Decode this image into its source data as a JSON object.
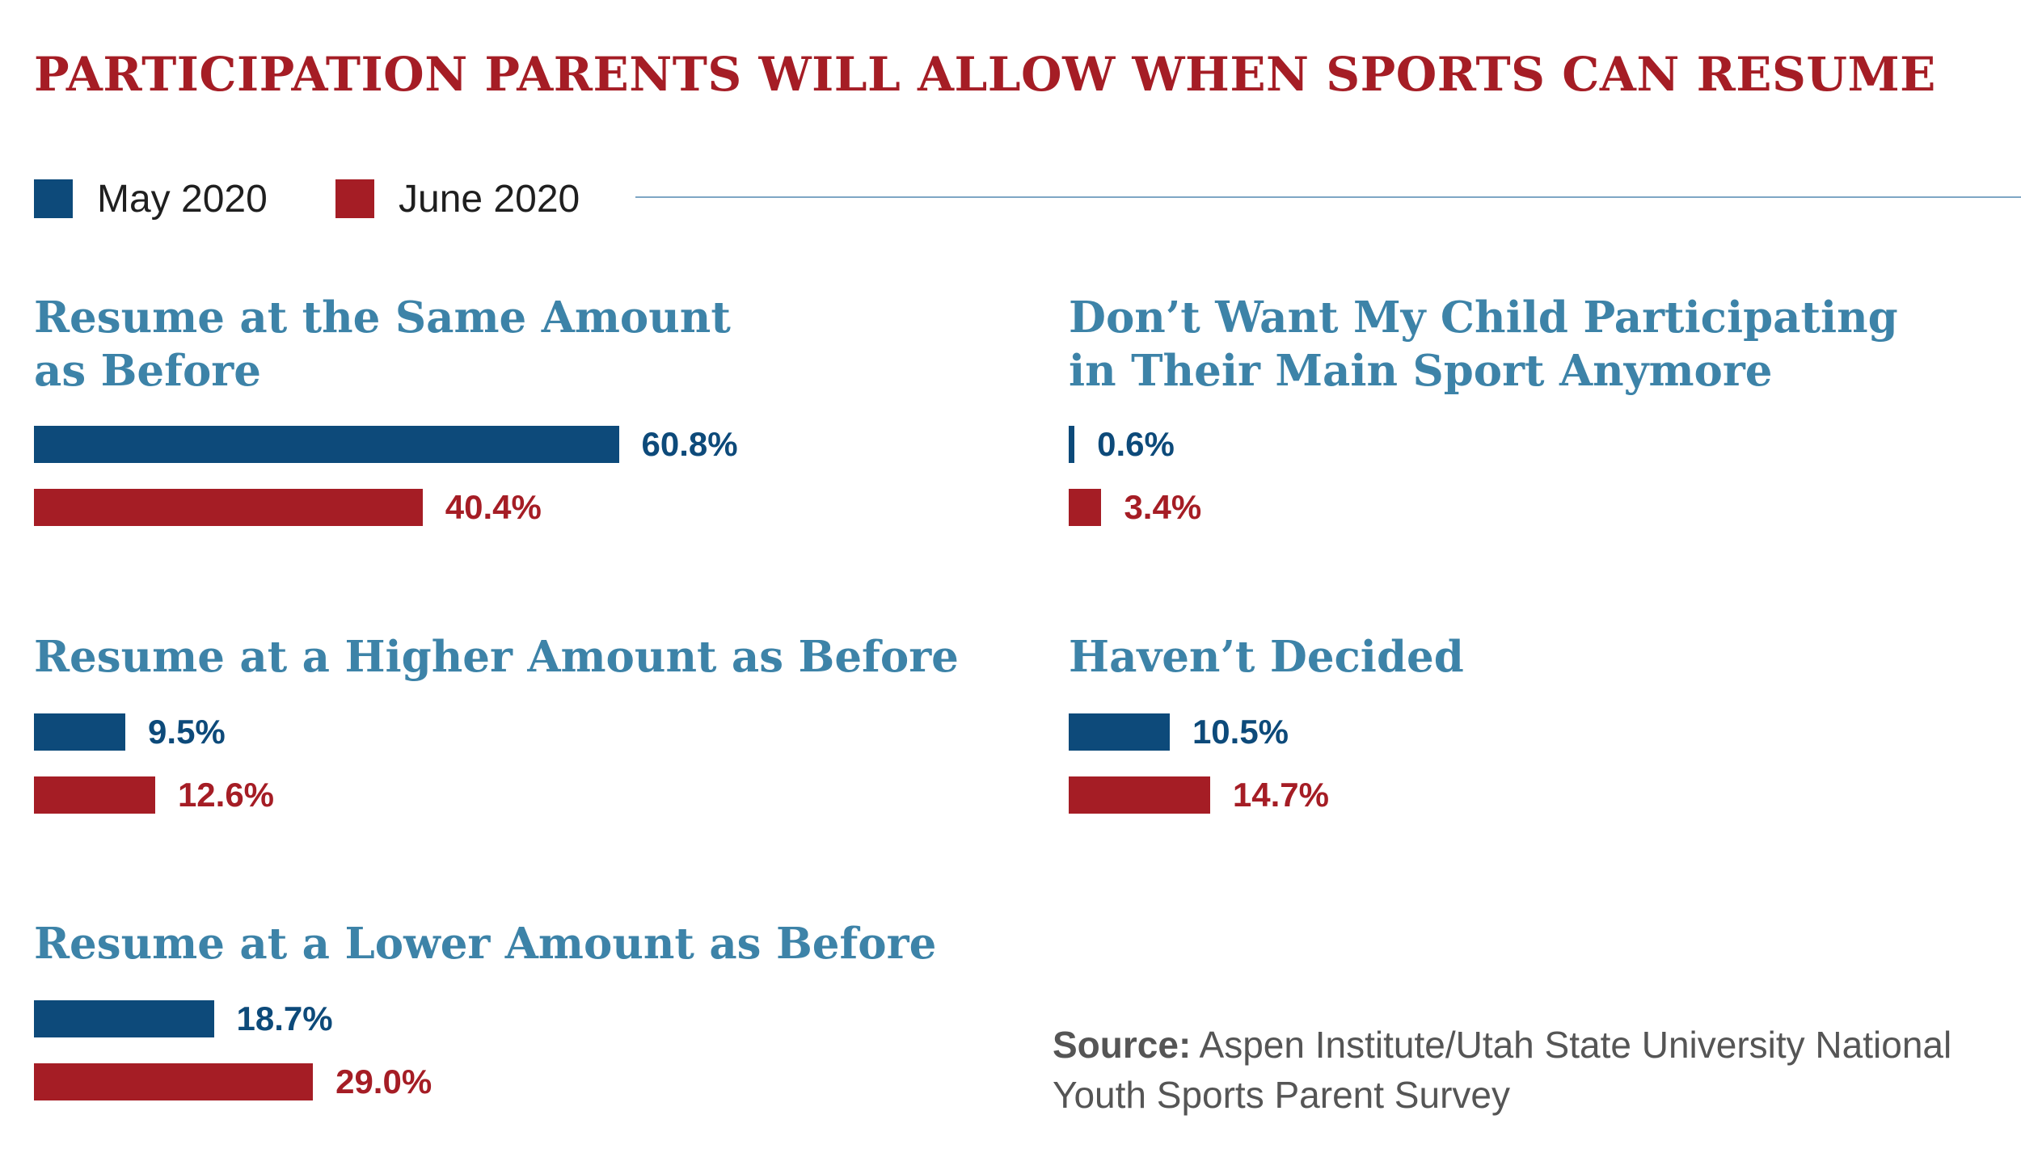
{
  "title": "PARTICIPATION PARENTS WILL ALLOW WHEN SPORTS CAN RESUME",
  "legend": [
    {
      "label": "May 2020",
      "color": "#0d4a7a"
    },
    {
      "label": "June 2020",
      "color": "#a51d25"
    }
  ],
  "source": {
    "label": "Source:",
    "text": "Aspen Institute/Utah State University National Youth Sports Parent Survey"
  },
  "chart_data": {
    "type": "bar",
    "orientation": "horizontal",
    "title": "PARTICIPATION PARENTS WILL ALLOW WHEN SPORTS CAN RESUME",
    "categories": [
      "Resume at the Same Amount\nas Before",
      "Resume at a Higher Amount as Before",
      "Resume at a Lower Amount as Before",
      "Don’t Want My Child Participating\nin Their Main Sport Anymore",
      "Haven’t Decided"
    ],
    "series": [
      {
        "name": "May 2020",
        "values": [
          60.8,
          9.5,
          18.7,
          0.6,
          10.5
        ],
        "labels": [
          "60.8%",
          "9.5%",
          "18.7%",
          "0.6%",
          "10.5%"
        ]
      },
      {
        "name": "June 2020",
        "values": [
          40.4,
          12.6,
          29.0,
          3.4,
          14.7
        ],
        "labels": [
          "40.4%",
          "12.6%",
          "29.0%",
          "3.4%",
          "14.7%"
        ]
      }
    ],
    "unit": "%",
    "legend_position": "top-left",
    "grid": false
  }
}
